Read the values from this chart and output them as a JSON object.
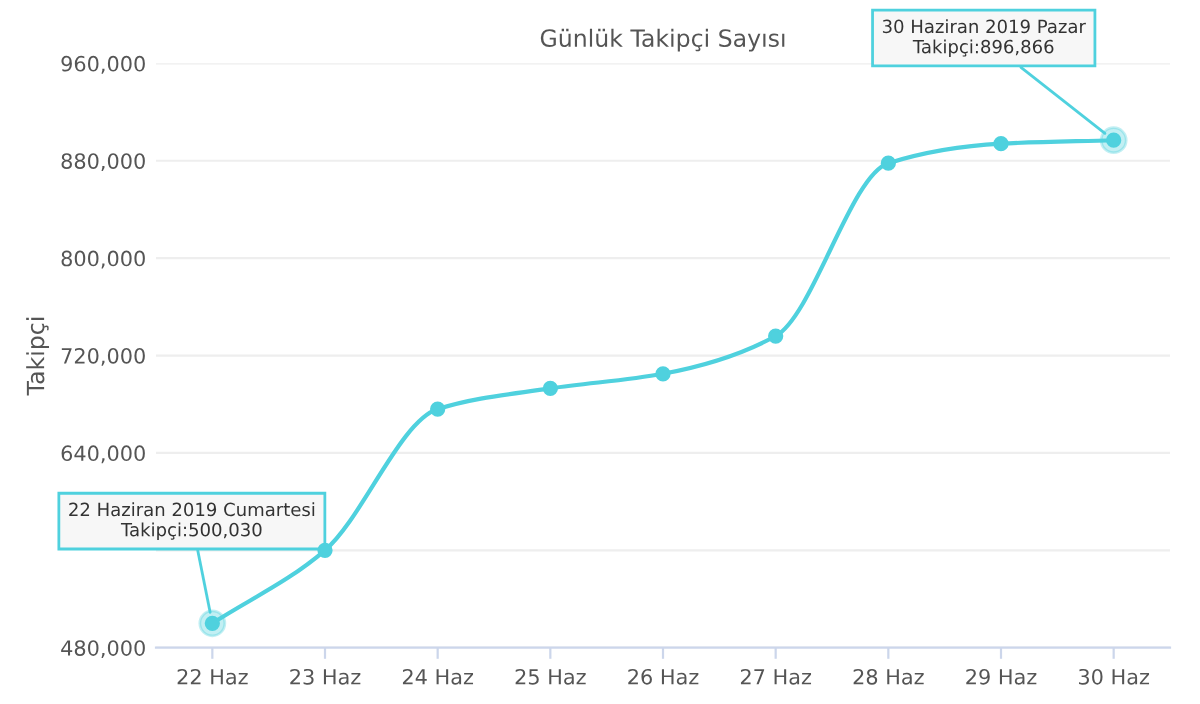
{
  "chart_data": {
    "type": "line",
    "title": "Günlük Takipçi Sayısı",
    "ylabel": "Takipçi",
    "categories": [
      "22 Haz",
      "23 Haz",
      "24 Haz",
      "25 Haz",
      "26 Haz",
      "27 Haz",
      "28 Haz",
      "29 Haz",
      "30 Haz"
    ],
    "series": [
      {
        "color": "#4fd1de",
        "values": [
          500030,
          560000,
          676000,
          693000,
          705000,
          736000,
          878000,
          894000,
          896866
        ]
      }
    ],
    "ylim": [
      480000,
      960000
    ],
    "yticks": [
      {
        "value": 480000,
        "label": "480,000"
      },
      {
        "value": 560000,
        "label": null
      },
      {
        "value": 640000,
        "label": "640,000"
      },
      {
        "value": 720000,
        "label": "720,000"
      },
      {
        "value": 800000,
        "label": "800,000"
      },
      {
        "value": 880000,
        "label": "880,000"
      },
      {
        "value": 960000,
        "label": "960,000"
      }
    ],
    "grid": "y",
    "marker": "circle",
    "line_style": "solid",
    "legend": false,
    "annotations": [
      {
        "text": "22 Haziran 2019 Cumartesi\nTakipçi:500,030",
        "x": "22 Haz",
        "y": 500030
      },
      {
        "text": "30 Haziran 2019 Pazar\nTakipçi:896,866",
        "x": "30 Haz",
        "y": 896866
      }
    ]
  }
}
